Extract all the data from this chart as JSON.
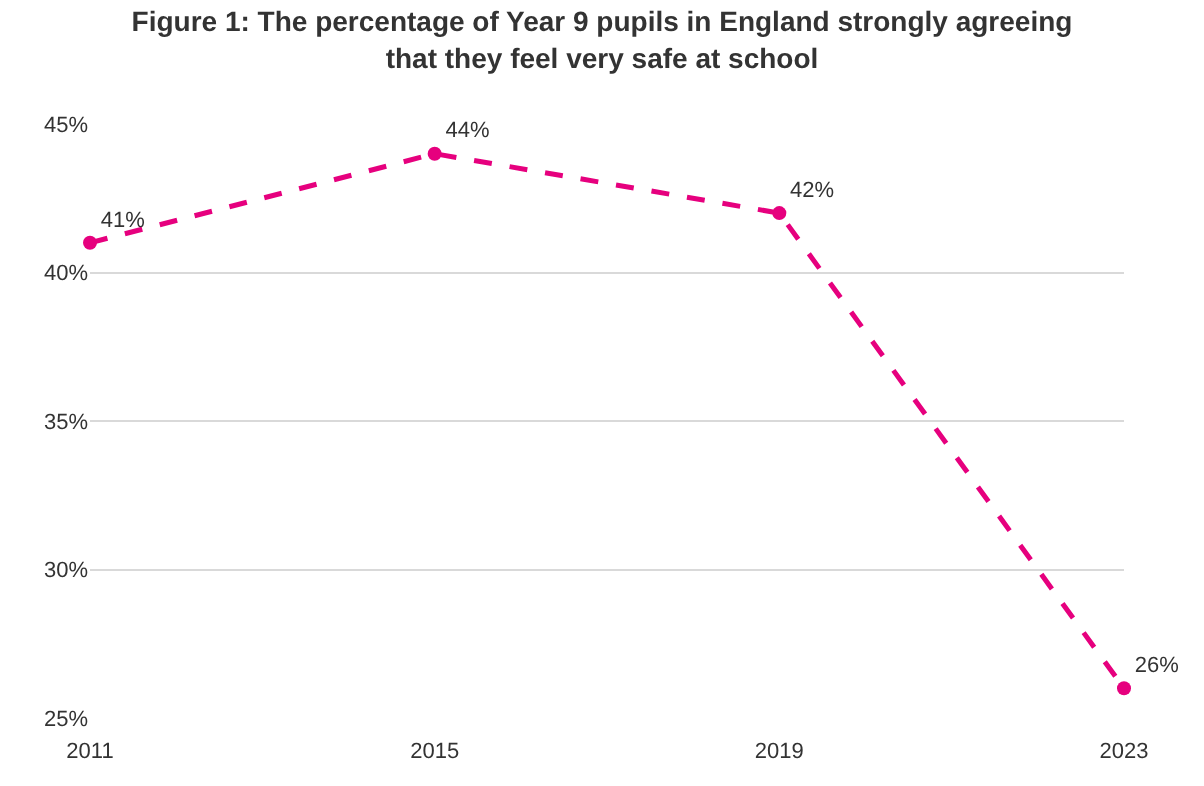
{
  "chart_data": {
    "type": "line",
    "title": "Figure 1: The percentage of Year 9 pupils in England strongly agreeing that they feel very safe at school",
    "categories": [
      "2011",
      "2015",
      "2019",
      "2023"
    ],
    "series": [
      {
        "color": "#e6007e",
        "values": [
          41,
          44,
          42,
          26
        ],
        "value_labels": [
          "41%",
          "44%",
          "42%",
          "26%"
        ]
      }
    ],
    "ylim": [
      25,
      45
    ],
    "yticks": [
      {
        "value": 25,
        "label": "25%"
      },
      {
        "value": 30,
        "label": "30%"
      },
      {
        "value": 35,
        "label": "35%"
      },
      {
        "value": 40,
        "label": "40%"
      },
      {
        "value": 45,
        "label": "45%"
      }
    ],
    "grid": "y",
    "marker": "circle",
    "line_style": "dashed"
  }
}
